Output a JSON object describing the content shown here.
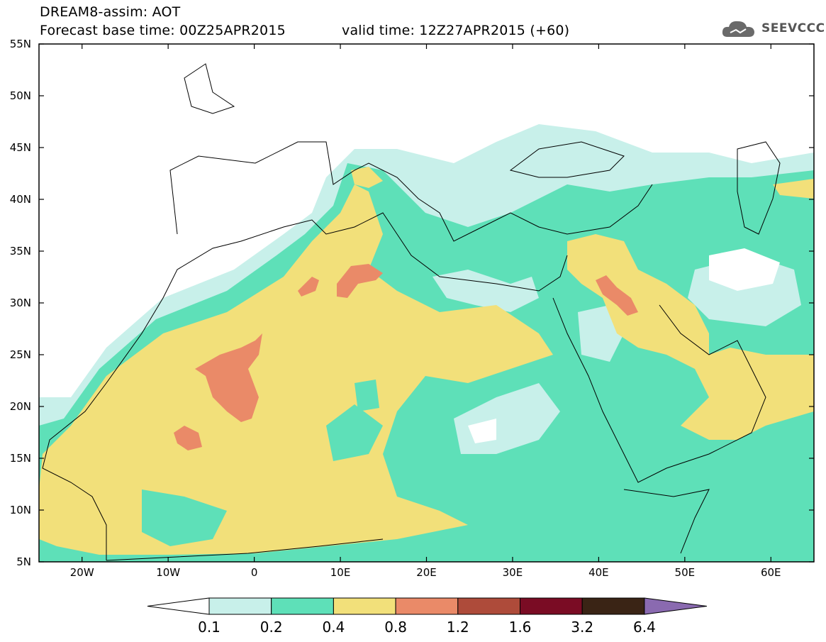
{
  "header": {
    "line1": "DREAM8-assim: AOT",
    "line2": "Forecast base time: 00Z25APR2015",
    "valid": "valid time: 12Z27APR2015 (+60)",
    "logo_text": "SEEVCCC"
  },
  "axes": {
    "lat_labels": [
      "55N",
      "50N",
      "45N",
      "40N",
      "35N",
      "30N",
      "25N",
      "20N",
      "15N",
      "10N",
      "5N"
    ],
    "lon_labels": [
      "20W",
      "10W",
      "0",
      "10E",
      "20E",
      "30E",
      "40E",
      "50E",
      "60E"
    ],
    "lat_range": [
      5,
      55
    ],
    "lon_range": [
      -25,
      65
    ]
  },
  "colorbar": {
    "levels": [
      "0.1",
      "0.2",
      "0.4",
      "0.8",
      "1.2",
      "1.6",
      "3.2",
      "6.4"
    ],
    "colors": [
      "#c8f0ea",
      "#5ee0b8",
      "#f2e07a",
      "#ea8a68",
      "#ae4b3a",
      "#7a0c24",
      "#3a2415",
      "#8a6ab0"
    ]
  },
  "chart_data": {
    "type": "heatmap",
    "title": "DREAM8-assim: AOT",
    "variable": "AOT",
    "forecast_base_time": "00Z25APR2015",
    "valid_time": "12Z27APR2015 (+60)",
    "x_range": [
      -25,
      65
    ],
    "y_range": [
      5,
      55
    ],
    "contour_levels": [
      0.1,
      0.2,
      0.4,
      0.8,
      1.2,
      1.6,
      3.2,
      6.4
    ],
    "maxima": [
      {
        "lon": -1,
        "lat": 22,
        "level": "0.8-1.2"
      },
      {
        "lon": -8,
        "lat": 16.5,
        "level": "0.8-1.2"
      },
      {
        "lon": 12,
        "lat": 32,
        "level": "0.8-1.2"
      },
      {
        "lon": 44,
        "lat": 29.5,
        "level": "0.8-1.2"
      }
    ]
  }
}
